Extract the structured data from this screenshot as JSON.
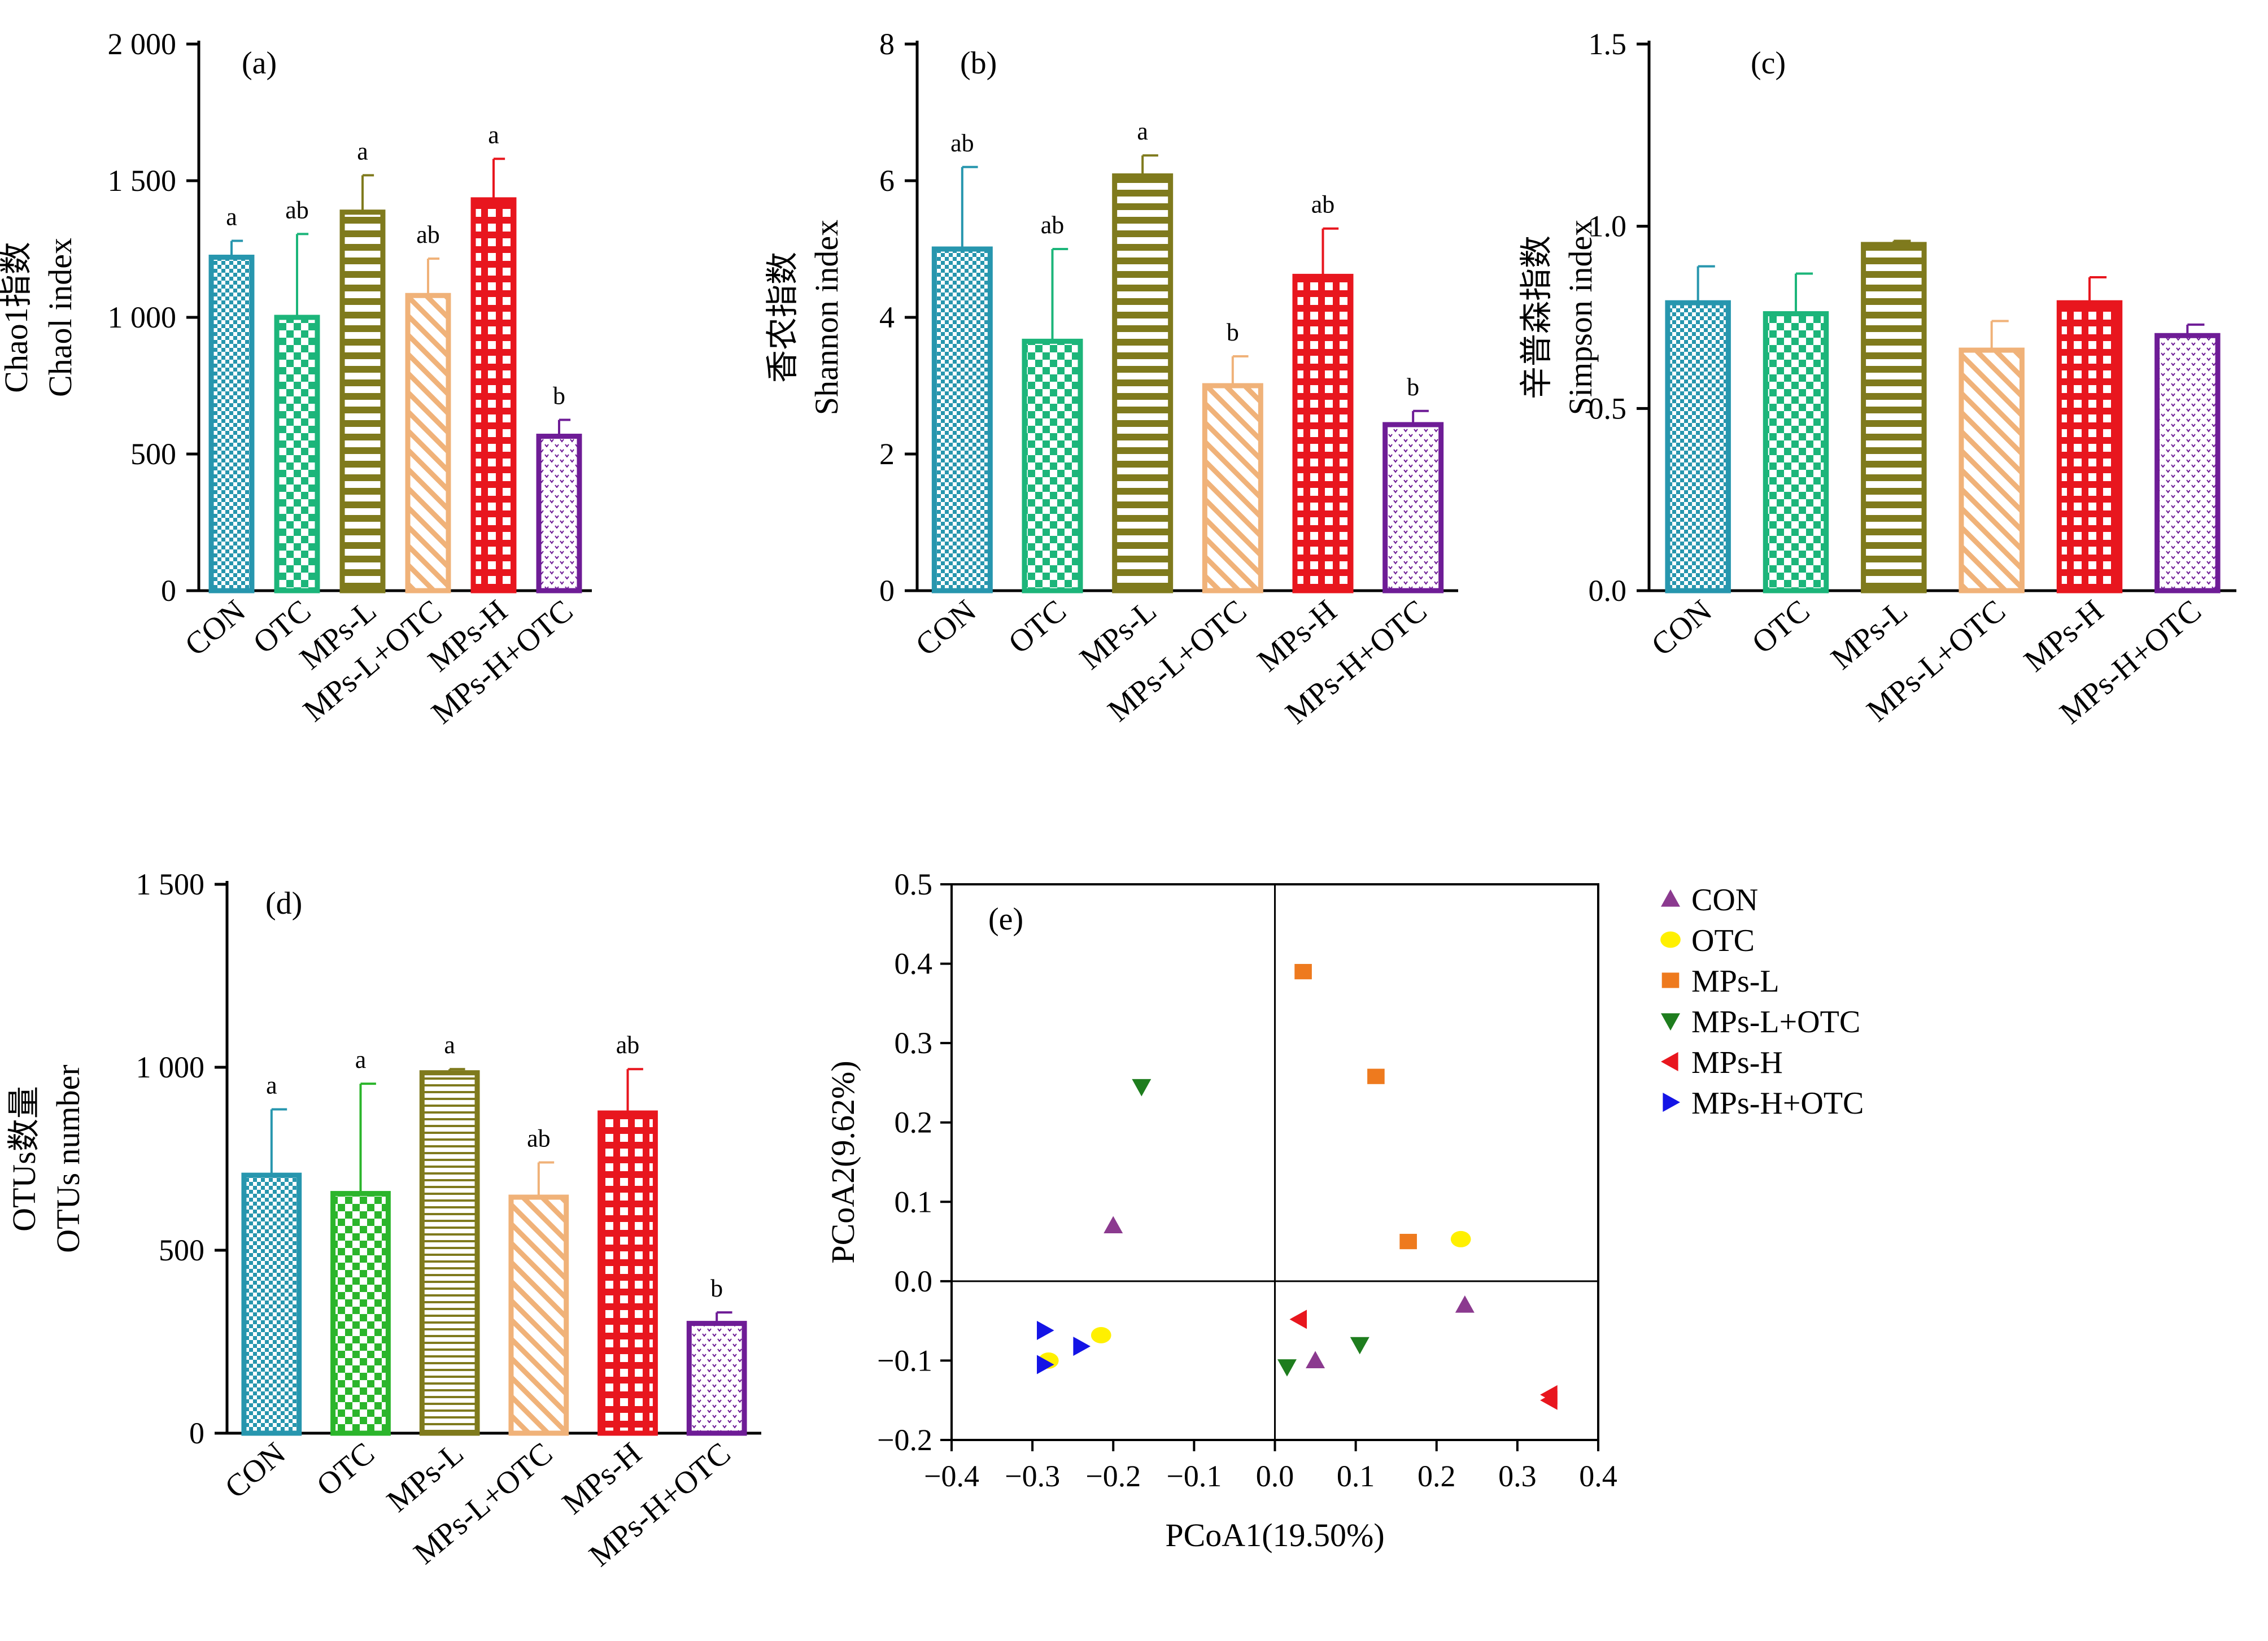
{
  "chart_data": [
    {
      "type": "bar",
      "panel_label": "(a)",
      "ylabel_cn": "Chao1指数",
      "ylabel_en": "Chaol index",
      "categories": [
        "CON",
        "OTC",
        "MPs-L",
        "MPs-L+OTC",
        "MPs-H",
        "MPs-H+OTC"
      ],
      "values": [
        1220,
        1000,
        1385,
        1080,
        1430,
        565
      ],
      "errors": [
        60,
        305,
        135,
        135,
        150,
        60
      ],
      "letters": [
        "a",
        "ab",
        "a",
        "ab",
        "a",
        "b"
      ],
      "ylim": [
        0,
        2000
      ],
      "yticks": [
        0,
        500,
        1000,
        1500,
        2000
      ],
      "ytick_labels": [
        "0",
        "500",
        "1 000",
        "1 500",
        "2 000"
      ]
    },
    {
      "type": "bar",
      "panel_label": "(b)",
      "ylabel_cn": "香农指数",
      "ylabel_en": "Shannon index",
      "categories": [
        "CON",
        "OTC",
        "MPs-L",
        "MPs-L+OTC",
        "MPs-H",
        "MPs-H+OTC"
      ],
      "values": [
        5.0,
        3.65,
        6.07,
        3.0,
        4.6,
        2.43
      ],
      "errors": [
        1.2,
        1.35,
        0.3,
        0.43,
        0.7,
        0.2
      ],
      "letters": [
        "ab",
        "ab",
        "a",
        "b",
        "ab",
        "b"
      ],
      "ylim": [
        0,
        8
      ],
      "yticks": [
        0,
        2,
        4,
        6,
        8
      ],
      "ytick_labels": [
        "0",
        "2",
        "4",
        "6",
        "8"
      ]
    },
    {
      "type": "bar",
      "panel_label": "(c)",
      "ylabel_cn": "辛普森指数",
      "ylabel_en": "Simpson index",
      "categories": [
        "CON",
        "OTC",
        "MPs-L",
        "MPs-L+OTC",
        "MPs-H",
        "MPs-H+OTC"
      ],
      "values": [
        0.79,
        0.76,
        0.95,
        0.66,
        0.79,
        0.7
      ],
      "errors": [
        0.1,
        0.11,
        0.01,
        0.08,
        0.07,
        0.03
      ],
      "letters": [
        "",
        "",
        "",
        "",
        "",
        ""
      ],
      "ylim": [
        0,
        1.5
      ],
      "yticks": [
        0,
        0.5,
        1.0,
        1.5
      ],
      "ytick_labels": [
        "0.0",
        "0.5",
        "1.0",
        "1.5"
      ]
    },
    {
      "type": "bar",
      "panel_label": "(d)",
      "ylabel_cn": "OTUs数量",
      "ylabel_en": "OTUs number",
      "categories": [
        "CON",
        "OTC",
        "MPs-L",
        "MPs-L+OTC",
        "MPs-H",
        "MPs-H+OTC"
      ],
      "values": [
        705,
        655,
        985,
        645,
        875,
        300
      ],
      "errors": [
        180,
        300,
        10,
        95,
        120,
        30
      ],
      "letters": [
        "a",
        "a",
        "a",
        "ab",
        "ab",
        "b"
      ],
      "ylim": [
        0,
        1500
      ],
      "yticks": [
        0,
        500,
        1000,
        1500
      ],
      "ytick_labels": [
        "0",
        "500",
        "1 000",
        "1 500"
      ]
    },
    {
      "type": "scatter",
      "panel_label": "(e)",
      "xlabel": "PCoA1(19.50%)",
      "ylabel": "PCoA2(9.62%)",
      "xlim": [
        -0.4,
        0.4
      ],
      "ylim": [
        -0.2,
        0.5
      ],
      "xticks": [
        -0.4,
        -0.3,
        -0.2,
        -0.1,
        0.0,
        0.1,
        0.2,
        0.3,
        0.4
      ],
      "xtick_labels": [
        "−0.4",
        "−0.3",
        "−0.2",
        "−0.1",
        "0.0",
        "0.1",
        "0.2",
        "0.3",
        "0.4"
      ],
      "yticks": [
        -0.2,
        -0.1,
        0.0,
        0.1,
        0.2,
        0.3,
        0.4,
        0.5
      ],
      "ytick_labels": [
        "−0.2",
        "−0.1",
        "0.0",
        "0.1",
        "0.2",
        "0.3",
        "0.4",
        "0.5"
      ],
      "legend_position": "right",
      "series": [
        {
          "name": "CON",
          "marker": "triangle-up",
          "color": "#8B3A8F",
          "points": [
            [
              -0.2,
              0.07
            ],
            [
              0.235,
              -0.03
            ],
            [
              0.05,
              -0.1
            ]
          ]
        },
        {
          "name": "OTC",
          "marker": "circle",
          "color": "#FFF000",
          "points": [
            [
              -0.215,
              -0.068
            ],
            [
              -0.28,
              -0.1
            ],
            [
              0.23,
              0.053
            ]
          ]
        },
        {
          "name": "MPs-L",
          "marker": "square",
          "color": "#EE7A1E",
          "points": [
            [
              0.035,
              0.39
            ],
            [
              0.125,
              0.258
            ],
            [
              0.165,
              0.05
            ]
          ]
        },
        {
          "name": "MPs-L+OTC",
          "marker": "triangle-down",
          "color": "#1E7D1E",
          "points": [
            [
              -0.165,
              0.245
            ],
            [
              0.015,
              -0.108
            ],
            [
              0.105,
              -0.08
            ]
          ]
        },
        {
          "name": "MPs-H",
          "marker": "triangle-left",
          "color": "#E8161E",
          "points": [
            [
              0.03,
              -0.048
            ],
            [
              0.34,
              -0.143
            ],
            [
              0.34,
              -0.15
            ]
          ]
        },
        {
          "name": "MPs-H+OTC",
          "marker": "triangle-right",
          "color": "#1414E6",
          "points": [
            [
              -0.285,
              -0.062
            ],
            [
              -0.24,
              -0.082
            ],
            [
              -0.285,
              -0.105
            ]
          ]
        }
      ]
    }
  ],
  "bar_styles": [
    {
      "pattern": "fine-check",
      "color": "#2796AE"
    },
    {
      "pattern": "check",
      "color": "#1CB57A"
    },
    {
      "pattern": "hstripe",
      "color": "#7F7A1D"
    },
    {
      "pattern": "diag",
      "color": "#F0B279"
    },
    {
      "pattern": "grid",
      "color": "#E8161E"
    },
    {
      "pattern": "dots",
      "color": "#6E1C96"
    }
  ],
  "panel_d_colors": [
    "#2796AE",
    "#2BB52B",
    "#7F7A1D",
    "#F0B279",
    "#E8161E",
    "#6E1C96"
  ]
}
